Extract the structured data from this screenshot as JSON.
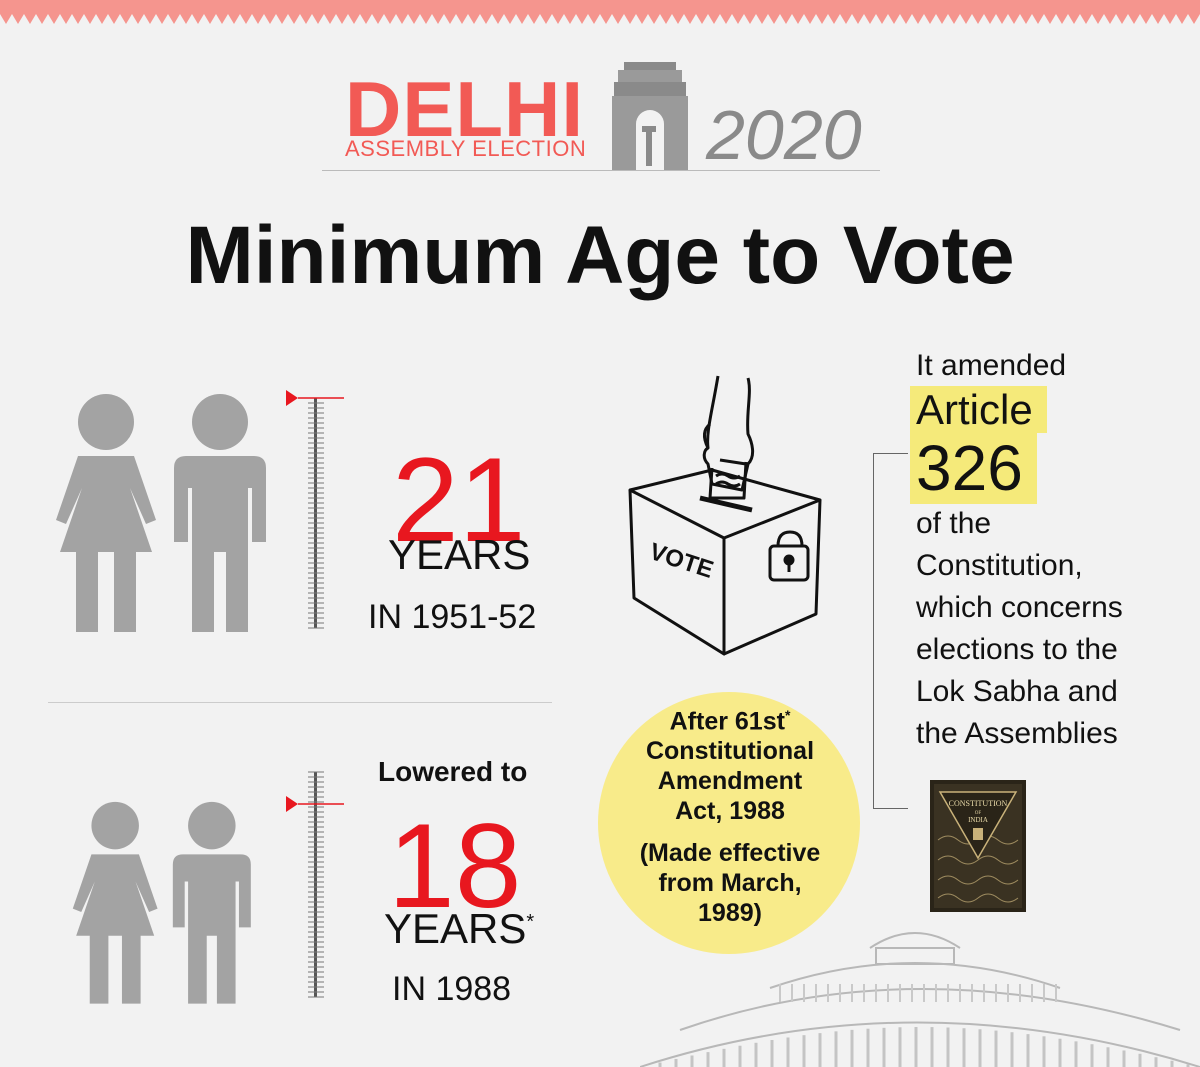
{
  "header": {
    "logo_title": "DELHI",
    "logo_subtitle": "ASSEMBLY ELECTION",
    "logo_year": "2020"
  },
  "title": "Minimum Age to Vote",
  "before": {
    "age": "21",
    "unit": "YEARS",
    "period": "IN 1951-52"
  },
  "after": {
    "intro": "Lowered to",
    "age": "18",
    "unit": "YEARS",
    "unit_mark": "*",
    "period": "IN 1988"
  },
  "ballot": {
    "box_label": "VOTE"
  },
  "amendment": {
    "line1": "After 61st",
    "line1_mark": "*",
    "line2": "Constitutional",
    "line3": "Amendment",
    "line4": "Act, 1988",
    "note1": "(Made effective",
    "note2": "from March,",
    "note3": "1989)"
  },
  "article": {
    "intro": "It amended",
    "word": "Article",
    "number": "326",
    "desc1": "of the",
    "desc2": "Constitution,",
    "desc3": "which concerns",
    "desc4": "elections to the",
    "desc5": "Lok Sabha and",
    "desc6": "the Assemblies"
  },
  "book": {
    "cover_line1": "CONSTITUTION",
    "cover_line2": "OF",
    "cover_line3": "INDIA"
  },
  "colors": {
    "accent_red": "#e8171f",
    "logo_coral": "#f25a55",
    "figure_gray": "#a3a3a3",
    "highlight_yellow": "#f8eb8a"
  }
}
